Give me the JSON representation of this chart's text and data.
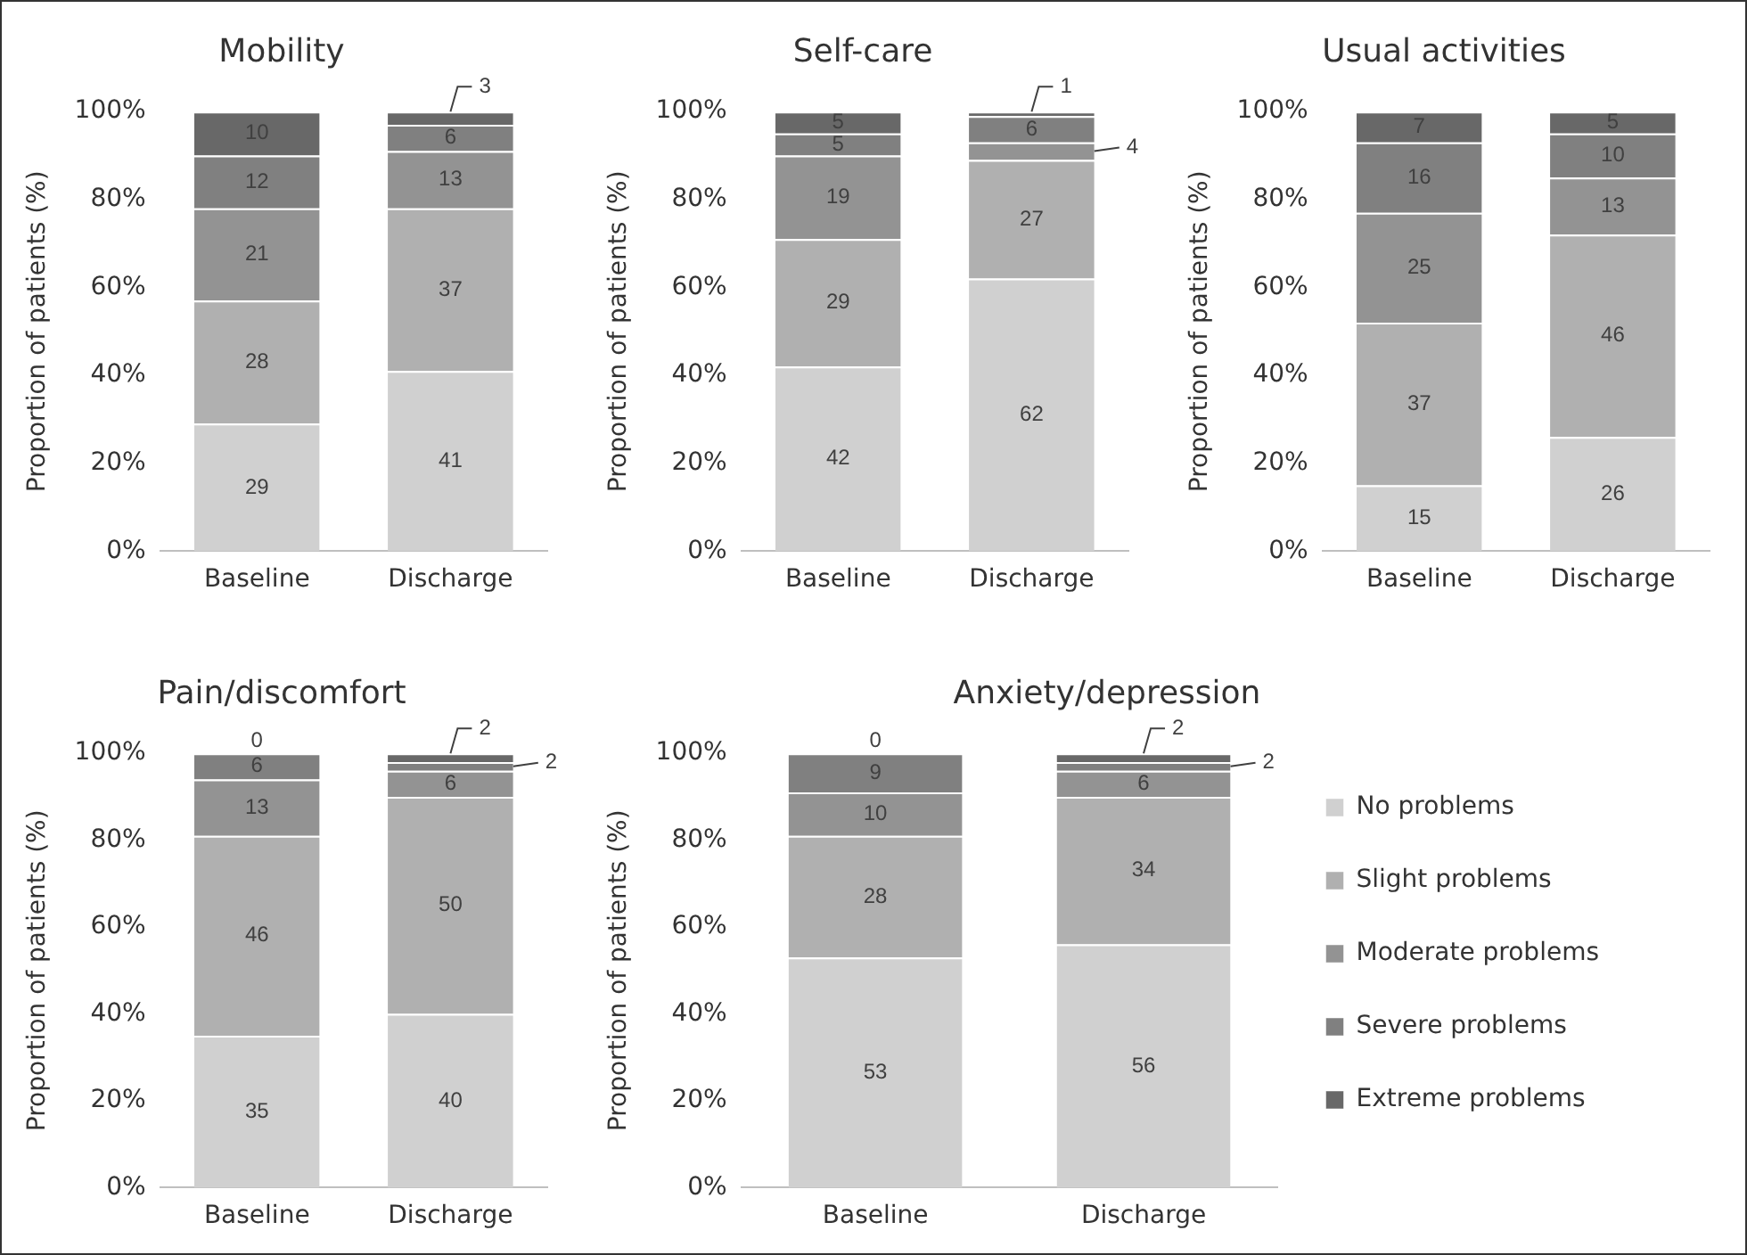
{
  "chart_data": [
    {
      "type": "bar",
      "stacked": true,
      "title": "Mobility",
      "categories": [
        "Baseline",
        "Discharge"
      ],
      "ylabel": "Proportion of patients (%)",
      "ylim": [
        0,
        100
      ],
      "yticks": [
        {
          "value": 0,
          "label": "0%"
        },
        {
          "value": 20,
          "label": "20%"
        },
        {
          "value": 40,
          "label": "40%"
        },
        {
          "value": 60,
          "label": "60%"
        },
        {
          "value": 80,
          "label": "80%"
        },
        {
          "value": 100,
          "label": "100%"
        }
      ],
      "data_labels": true,
      "grid": false,
      "legend": false,
      "series": [
        {
          "color": "#d0d0d0",
          "values": [
            29,
            41
          ]
        },
        {
          "color": "#b0b0b0",
          "values": [
            28,
            37
          ]
        },
        {
          "color": "#939393",
          "values": [
            21,
            13
          ]
        },
        {
          "color": "#808080",
          "values": [
            12,
            6
          ]
        },
        {
          "color": "#686868",
          "values": [
            10,
            3
          ]
        }
      ]
    },
    {
      "type": "bar",
      "stacked": true,
      "title": "Self-care",
      "categories": [
        "Baseline",
        "Discharge"
      ],
      "ylabel": "Proportion of patients (%)",
      "ylim": [
        0,
        100
      ],
      "yticks": [
        {
          "value": 0,
          "label": "0%"
        },
        {
          "value": 20,
          "label": "20%"
        },
        {
          "value": 40,
          "label": "40%"
        },
        {
          "value": 60,
          "label": "60%"
        },
        {
          "value": 80,
          "label": "80%"
        },
        {
          "value": 100,
          "label": "100%"
        }
      ],
      "data_labels": true,
      "grid": false,
      "legend": false,
      "series": [
        {
          "color": "#d0d0d0",
          "values": [
            42,
            62
          ]
        },
        {
          "color": "#b0b0b0",
          "values": [
            29,
            27
          ]
        },
        {
          "color": "#939393",
          "values": [
            19,
            4
          ]
        },
        {
          "color": "#808080",
          "values": [
            5,
            6
          ]
        },
        {
          "color": "#686868",
          "values": [
            5,
            1
          ]
        }
      ]
    },
    {
      "type": "bar",
      "stacked": true,
      "title": "Usual activities",
      "categories": [
        "Baseline",
        "Discharge"
      ],
      "ylabel": "Proportion of patients (%)",
      "ylim": [
        0,
        100
      ],
      "yticks": [
        {
          "value": 0,
          "label": "0%"
        },
        {
          "value": 20,
          "label": "20%"
        },
        {
          "value": 40,
          "label": "40%"
        },
        {
          "value": 60,
          "label": "60%"
        },
        {
          "value": 80,
          "label": "80%"
        },
        {
          "value": 100,
          "label": "100%"
        }
      ],
      "data_labels": true,
      "grid": false,
      "legend": false,
      "series": [
        {
          "color": "#d0d0d0",
          "values": [
            15,
            26
          ]
        },
        {
          "color": "#b0b0b0",
          "values": [
            37,
            46
          ]
        },
        {
          "color": "#939393",
          "values": [
            25,
            13
          ]
        },
        {
          "color": "#808080",
          "values": [
            16,
            10
          ]
        },
        {
          "color": "#686868",
          "values": [
            7,
            5
          ]
        }
      ]
    },
    {
      "type": "bar",
      "stacked": true,
      "title": "Pain/discomfort",
      "categories": [
        "Baseline",
        "Discharge"
      ],
      "ylabel": "Proportion of patients (%)",
      "ylim": [
        0,
        100
      ],
      "yticks": [
        {
          "value": 0,
          "label": "0%"
        },
        {
          "value": 20,
          "label": "20%"
        },
        {
          "value": 40,
          "label": "40%"
        },
        {
          "value": 60,
          "label": "60%"
        },
        {
          "value": 80,
          "label": "80%"
        },
        {
          "value": 100,
          "label": "100%"
        }
      ],
      "data_labels": true,
      "grid": false,
      "legend": false,
      "series": [
        {
          "color": "#d0d0d0",
          "values": [
            35,
            40
          ]
        },
        {
          "color": "#b0b0b0",
          "values": [
            46,
            50
          ]
        },
        {
          "color": "#939393",
          "values": [
            13,
            6
          ]
        },
        {
          "color": "#808080",
          "values": [
            6,
            2
          ]
        },
        {
          "color": "#686868",
          "values": [
            0,
            2
          ]
        }
      ]
    },
    {
      "type": "bar",
      "stacked": true,
      "title": "Anxiety/depression",
      "categories": [
        "Baseline",
        "Discharge"
      ],
      "ylabel": "Proportion of patients (%)",
      "ylim": [
        0,
        100
      ],
      "yticks": [
        {
          "value": 0,
          "label": "0%"
        },
        {
          "value": 20,
          "label": "20%"
        },
        {
          "value": 40,
          "label": "40%"
        },
        {
          "value": 60,
          "label": "60%"
        },
        {
          "value": 80,
          "label": "80%"
        },
        {
          "value": 100,
          "label": "100%"
        }
      ],
      "data_labels": true,
      "grid": false,
      "legend": "right",
      "series": [
        {
          "name": "No problems",
          "color": "#d0d0d0",
          "values": [
            53,
            56
          ]
        },
        {
          "name": "Slight problems",
          "color": "#b0b0b0",
          "values": [
            28,
            34
          ]
        },
        {
          "name": "Moderate problems",
          "color": "#939393",
          "values": [
            10,
            6
          ]
        },
        {
          "name": "Severe problems",
          "color": "#808080",
          "values": [
            9,
            2
          ]
        },
        {
          "name": "Extreme problems",
          "color": "#686868",
          "values": [
            0,
            2
          ]
        }
      ]
    }
  ]
}
